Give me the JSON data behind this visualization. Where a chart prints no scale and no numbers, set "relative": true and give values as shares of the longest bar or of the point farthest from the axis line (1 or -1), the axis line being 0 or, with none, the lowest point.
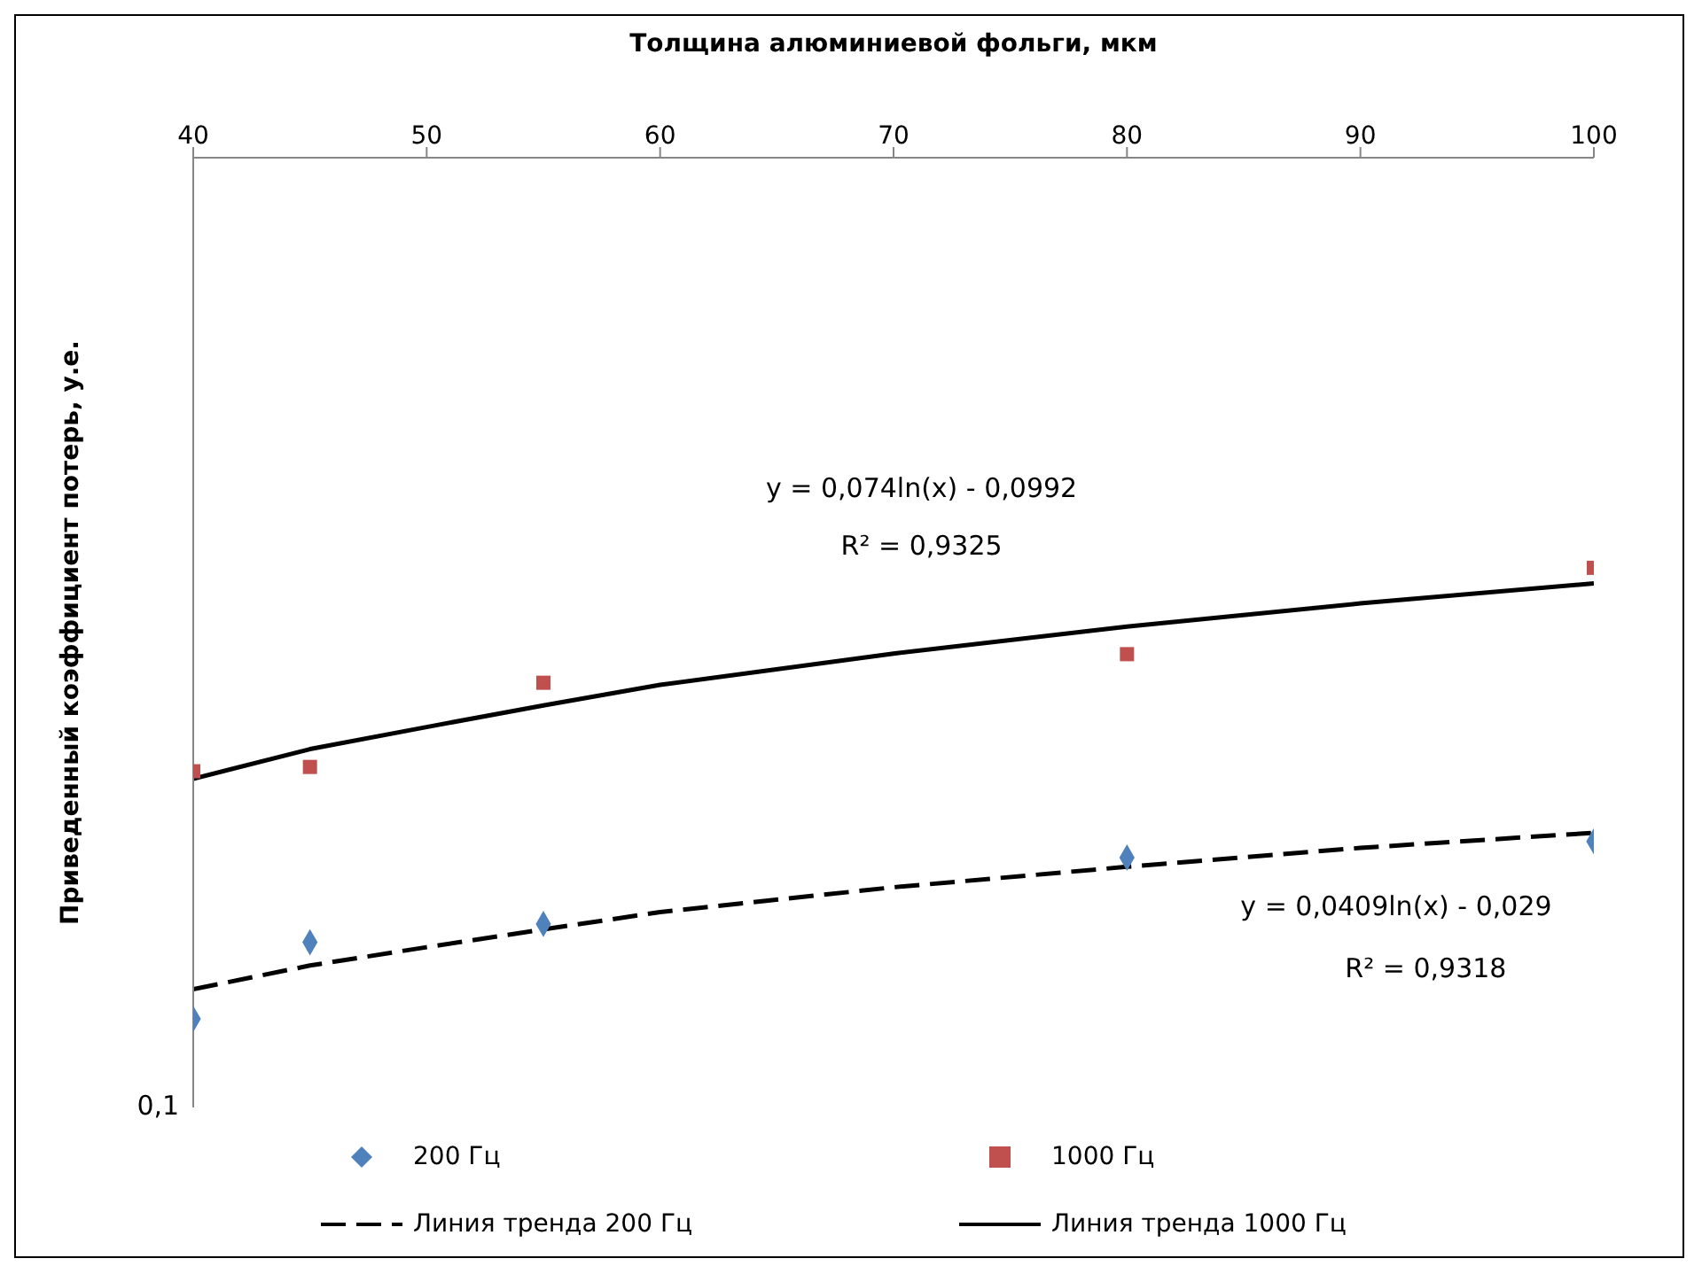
{
  "chart_data": {
    "type": "scatter",
    "relative": true,
    "xlabel": "Толщина алюминиевой фольги, мкм",
    "ylabel": "Приведенный коэффициент потерь, у.е.",
    "xlim": [
      40,
      100
    ],
    "xticks": [
      40,
      50,
      60,
      70,
      80,
      90,
      100
    ],
    "legend": "bottom",
    "series": [
      {
        "name": "200 Гц",
        "marker": "diamond",
        "color": "#4f81bd",
        "x": [
          40,
          45,
          55,
          80,
          100
        ],
        "values": [
          0.164,
          0.306,
          0.34,
          0.463,
          0.493
        ]
      },
      {
        "name": "1000 Гц",
        "marker": "square",
        "color": "#c0504d",
        "x": [
          40,
          45,
          55,
          80,
          100
        ],
        "values": [
          0.623,
          0.631,
          0.787,
          0.84,
          1
        ]
      },
      {
        "name": "Линия тренда 200 Гц",
        "type": "line",
        "marker": "none",
        "line_style": "dashed",
        "color": "#000000",
        "x": [
          40,
          45,
          50,
          55,
          60,
          70,
          80,
          90,
          100
        ],
        "values": [
          0.219,
          0.263,
          0.297,
          0.33,
          0.362,
          0.408,
          0.446,
          0.481,
          0.509
        ]
      },
      {
        "name": "Линия тренда 1000 Гц",
        "type": "line",
        "marker": "none",
        "line_style": "solid",
        "color": "#000000",
        "x": [
          40,
          45,
          50,
          55,
          60,
          70,
          80,
          90,
          100
        ],
        "values": [
          0.609,
          0.664,
          0.705,
          0.745,
          0.783,
          0.841,
          0.891,
          0.934,
          0.971
        ]
      }
    ],
    "annotations": [
      "y = 0,074ln(x) - 0,0992",
      "R² = 0,9325",
      "y = 0,0409ln(x) - 0,029",
      "R² = 0,9318",
      "0,1"
    ]
  }
}
